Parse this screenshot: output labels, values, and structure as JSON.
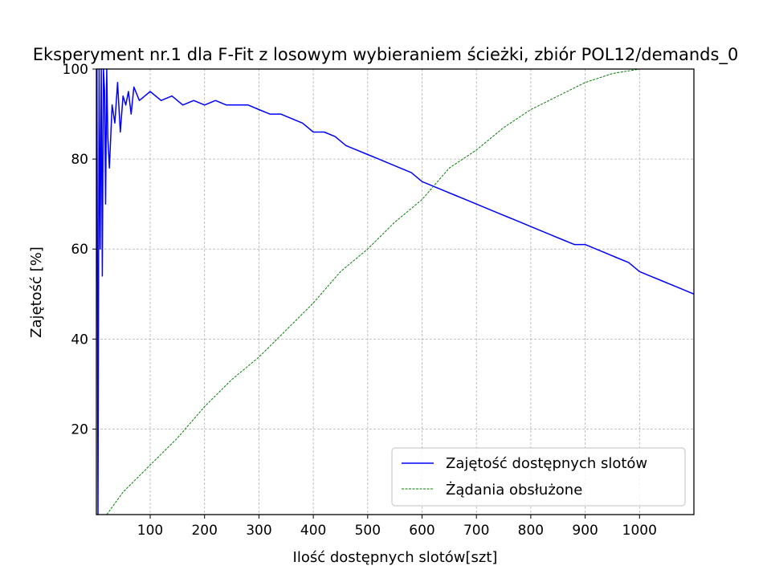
{
  "chart_data": {
    "type": "line",
    "title": "Eksperyment nr.1 dla F-Fit z losowym wybieraniem ścieżki, zbiór POL12/demands_0",
    "xlabel": "Ilość dostępnych slotów[szt]",
    "ylabel": "Zajętość [%]",
    "xlim": [
      1,
      1100
    ],
    "ylim": [
      1,
      100
    ],
    "xticks": [
      100,
      200,
      300,
      400,
      500,
      600,
      700,
      800,
      900,
      1000
    ],
    "yticks": [
      20,
      40,
      60,
      80,
      100
    ],
    "grid": true,
    "legend_position": "lower-right",
    "series": [
      {
        "name": "Zajętość dostępnych slotów",
        "color": "#0000ff",
        "style": "solid",
        "x": [
          2,
          4,
          6,
          8,
          10,
          12,
          14,
          16,
          18,
          20,
          22,
          25,
          30,
          35,
          40,
          45,
          50,
          55,
          60,
          65,
          70,
          80,
          90,
          100,
          120,
          140,
          160,
          180,
          200,
          220,
          240,
          260,
          280,
          300,
          320,
          340,
          360,
          380,
          400,
          420,
          440,
          460,
          480,
          500,
          520,
          540,
          560,
          580,
          600,
          620,
          640,
          660,
          680,
          700,
          720,
          740,
          760,
          780,
          800,
          820,
          840,
          860,
          880,
          900,
          920,
          940,
          960,
          980,
          1000,
          1020,
          1040,
          1060,
          1080,
          1100
        ],
        "y": [
          100,
          1,
          100,
          60,
          100,
          54,
          100,
          95,
          70,
          100,
          85,
          78,
          92,
          88,
          97,
          86,
          94,
          92,
          95,
          90,
          96,
          93,
          94,
          95,
          93,
          94,
          92,
          93,
          92,
          93,
          92,
          92,
          92,
          91,
          90,
          90,
          89,
          88,
          86,
          86,
          85,
          83,
          82,
          81,
          80,
          79,
          78,
          77,
          75,
          74,
          73,
          72,
          71,
          70,
          69,
          68,
          67,
          66,
          65,
          64,
          63,
          62,
          61,
          61,
          60,
          59,
          58,
          57,
          55,
          54,
          53,
          52,
          51,
          50
        ]
      },
      {
        "name": "Żądania obsłużone",
        "color": "#008000",
        "style": "dashed",
        "x": [
          20,
          50,
          100,
          150,
          200,
          250,
          300,
          350,
          400,
          450,
          500,
          550,
          600,
          650,
          700,
          750,
          800,
          850,
          900,
          950,
          1000
        ],
        "y": [
          1,
          6,
          12,
          18,
          25,
          31,
          36,
          42,
          48,
          55,
          60,
          66,
          71,
          78,
          82,
          87,
          91,
          94,
          97,
          99,
          100
        ]
      }
    ]
  }
}
